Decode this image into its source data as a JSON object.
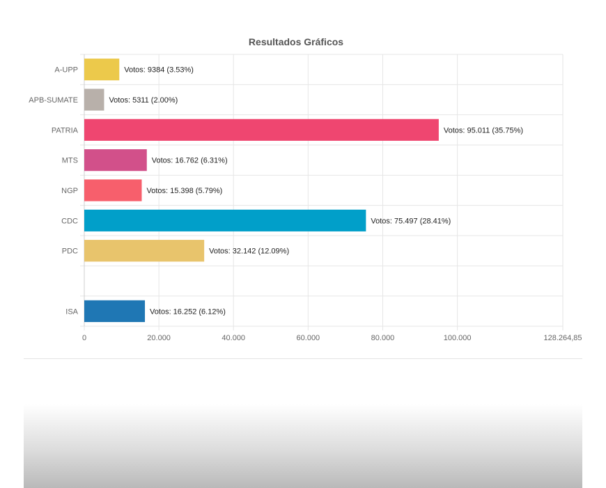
{
  "chart_data": {
    "type": "bar",
    "orientation": "horizontal",
    "title": "Resultados Gráficos",
    "categories": [
      "A-UPP",
      "APB-SUMATE",
      "PATRIA",
      "MTS",
      "NGP",
      "CDC",
      "PDC",
      "",
      "ISA"
    ],
    "values": [
      9384,
      5311,
      95011,
      16762,
      15398,
      75497,
      32142,
      null,
      16252
    ],
    "data_labels": [
      "Votos: 9384 (3.53%)",
      "Votos: 5311 (2.00%)",
      "Votos: 95.011 (35.75%)",
      "Votos: 16.762 (6.31%)",
      "Votos: 15.398 (5.79%)",
      "Votos: 75.497 (28.41%)",
      "Votos: 32.142 (12.09%)",
      "",
      "Votos: 16.252 (6.12%)"
    ],
    "colors": [
      "#ecc94b",
      "#b8b0aa",
      "#ef4670",
      "#d2508a",
      "#f75f6c",
      "#019fc9",
      "#e8c46c",
      "",
      "#1f77b4"
    ],
    "x_ticks": [
      0,
      20000,
      40000,
      60000,
      80000,
      100000,
      128264.85
    ],
    "x_tick_labels": [
      "0",
      "20.000",
      "40.000",
      "60.000",
      "80.000",
      "100.000",
      "128.264,85"
    ],
    "xlim": [
      0,
      128264.85
    ],
    "grid": true
  }
}
